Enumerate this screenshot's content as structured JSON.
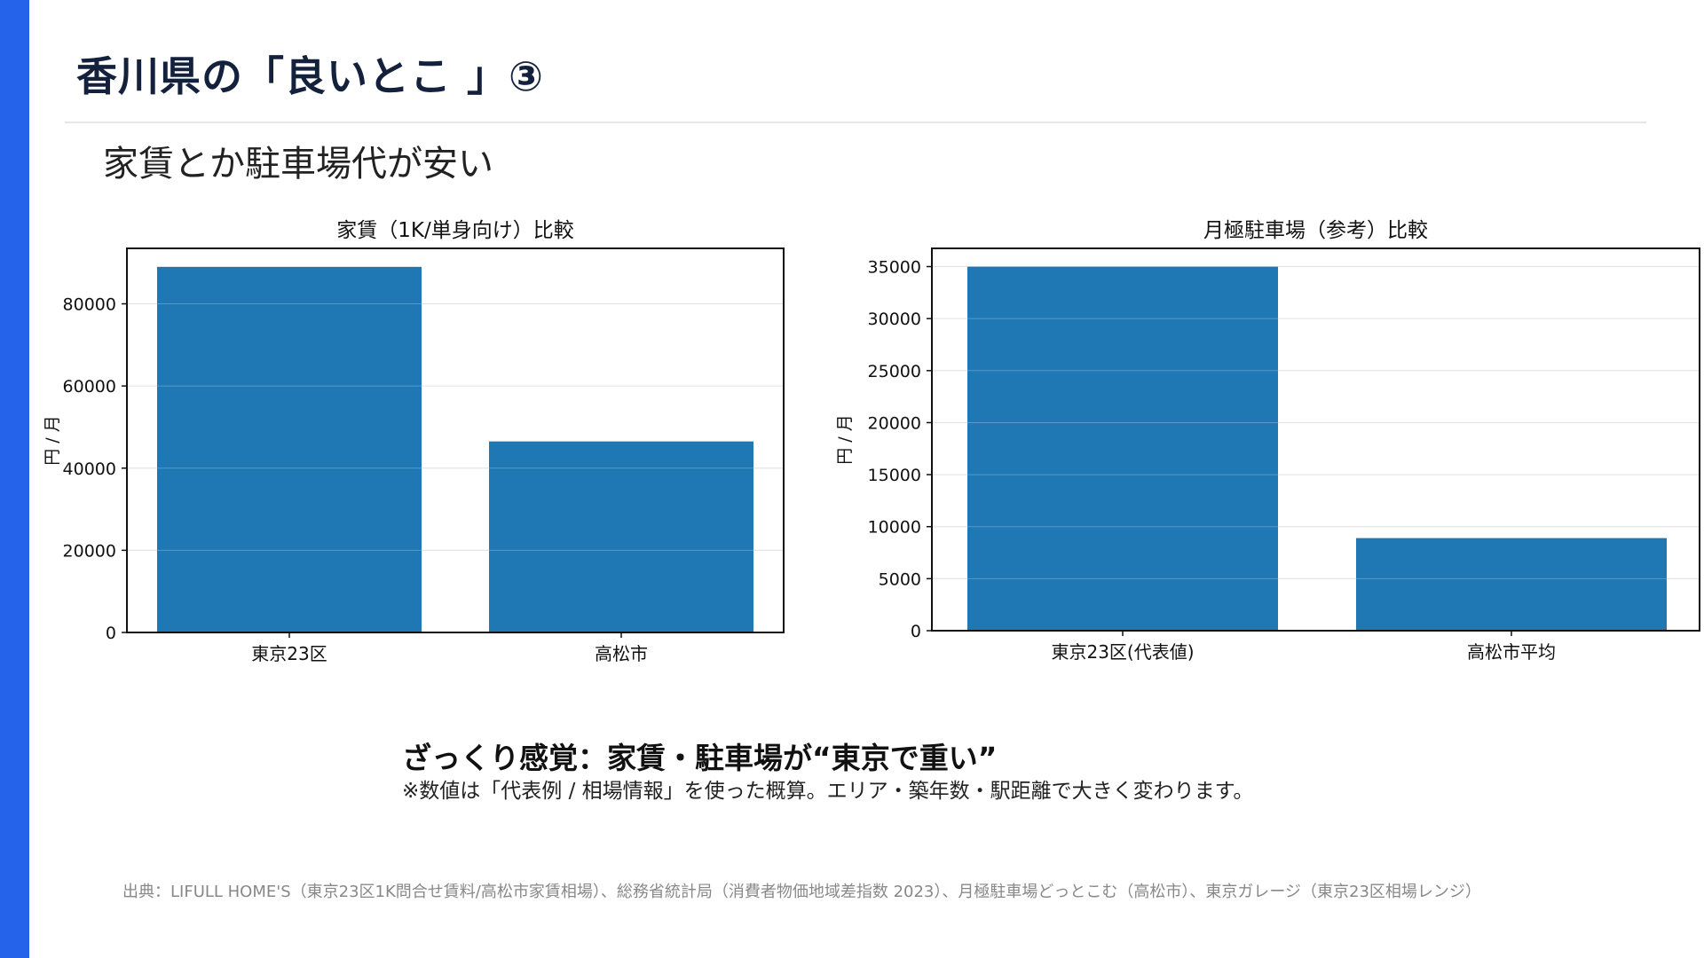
{
  "slide": {
    "title": "香川県の「良いとこ 」③",
    "subtitle": "家賃とか駐車場代が安い",
    "summary": "ざっくり感覚：家賃・駐車場が“東京で重い”",
    "note": "※数値は「代表例 / 相場情報」を使った概算。エリア・築年数・駅距離で大きく変わります。",
    "source": "出典：LIFULL HOME'S（東京23区1K問合せ賃料/高松市家賃相場）、総務省統計局（消費者物価地域差指数 2023）、月極駐車場どっとこむ（高松市）、東京ガレージ（東京23区相場レンジ）",
    "accent_color": "#2563eb"
  },
  "chart_data": [
    {
      "type": "bar",
      "title": "家賃（1K/単身向け）比較",
      "ylabel": "円 / 月",
      "categories": [
        "東京23区",
        "高松市"
      ],
      "values": [
        89000,
        46500
      ],
      "yticks": [
        0,
        20000,
        40000,
        60000,
        80000
      ],
      "ylim": [
        0,
        93500
      ],
      "grid": true,
      "bar_color": "#1f77b4"
    },
    {
      "type": "bar",
      "title": "月極駐車場（参考）比較",
      "ylabel": "円 / 月",
      "categories": [
        "東京23区(代表値)",
        "高松市平均"
      ],
      "values": [
        35000,
        8900
      ],
      "yticks": [
        0,
        5000,
        10000,
        15000,
        20000,
        25000,
        30000,
        35000
      ],
      "ylim": [
        0,
        36750
      ],
      "grid": true,
      "bar_color": "#1f77b4"
    }
  ]
}
